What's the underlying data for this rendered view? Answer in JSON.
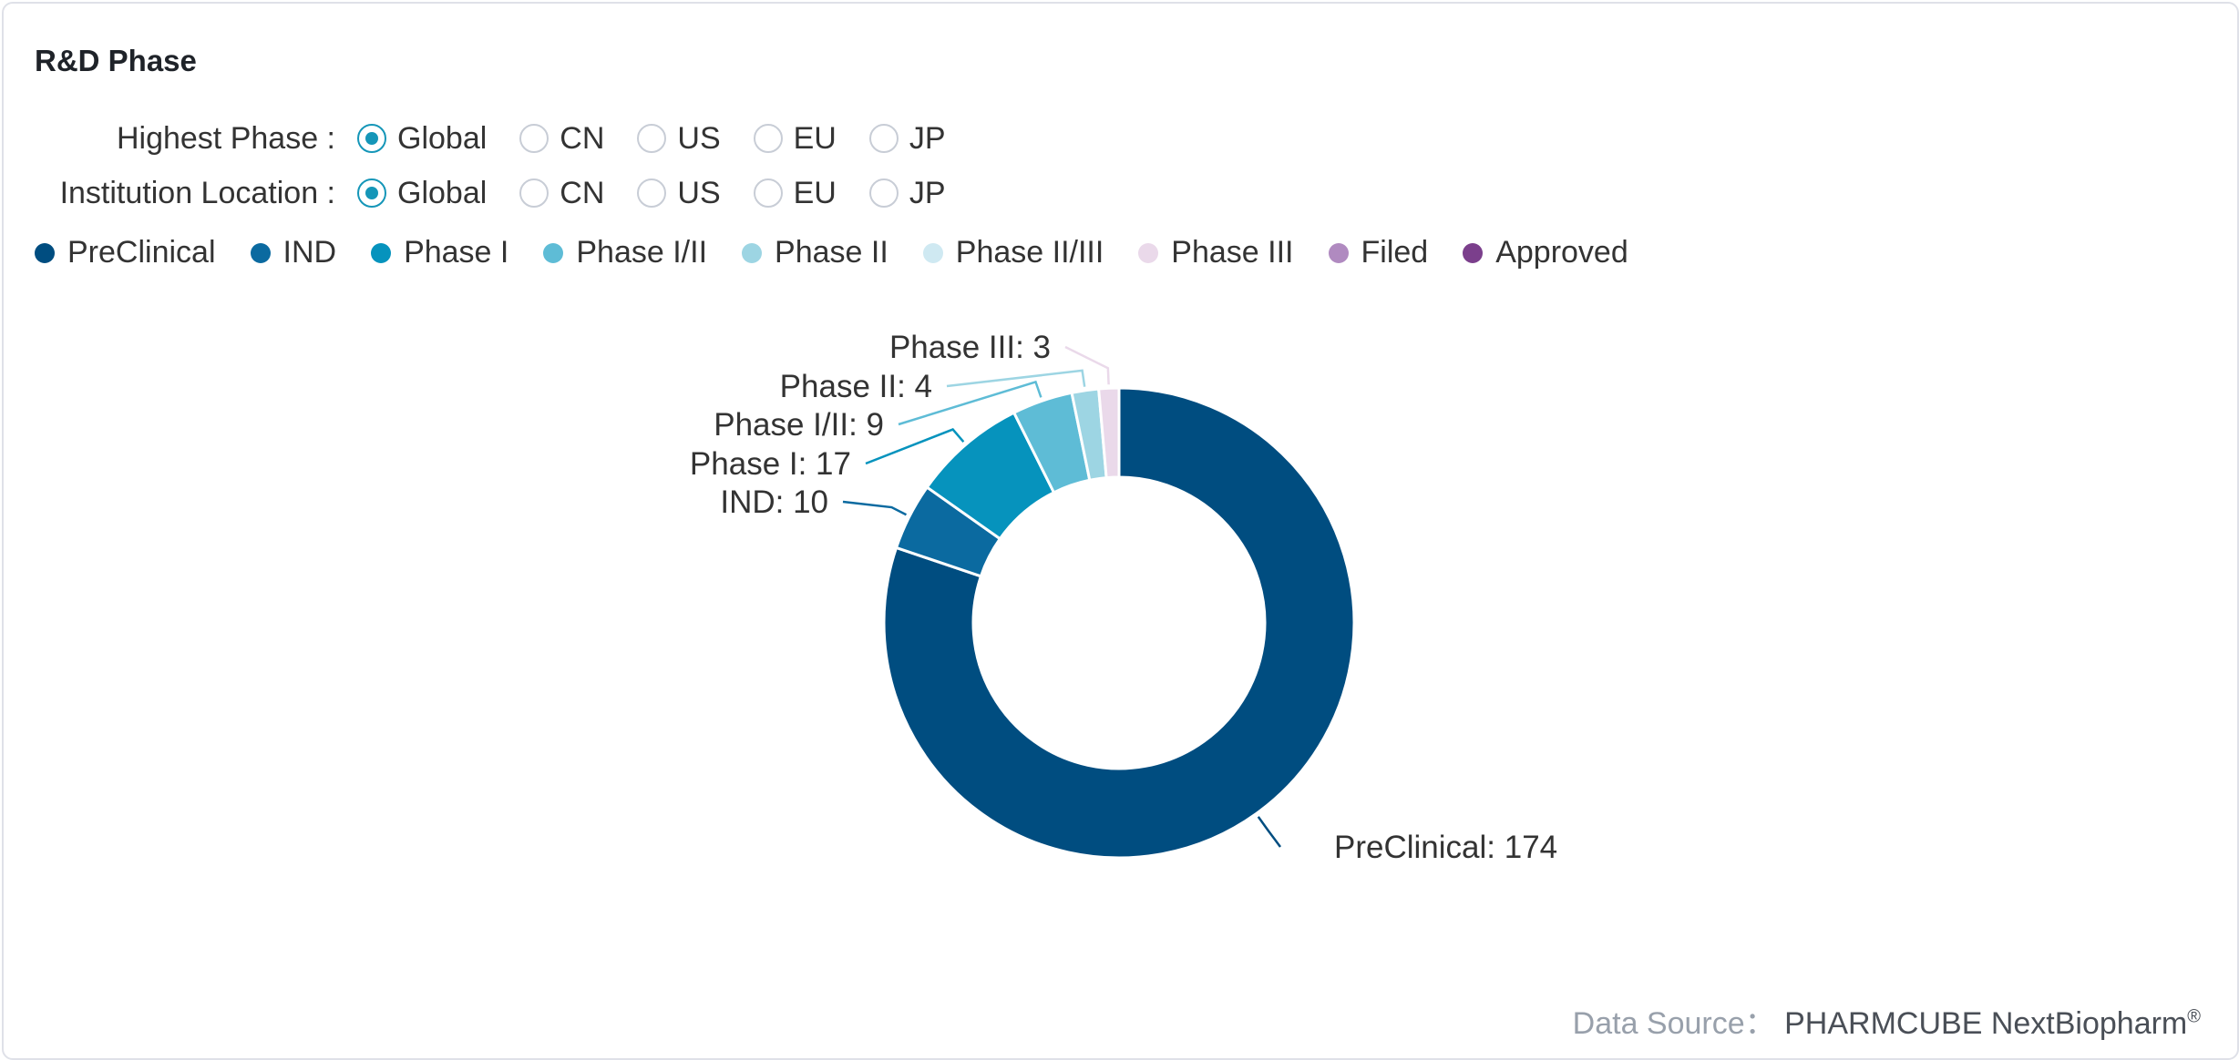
{
  "header": {
    "title": "R&D Phase"
  },
  "filters": [
    {
      "label": "Highest Phase :",
      "options": [
        "Global",
        "CN",
        "US",
        "EU",
        "JP"
      ],
      "selected": "Global"
    },
    {
      "label": "Institution Location :",
      "options": [
        "Global",
        "CN",
        "US",
        "EU",
        "JP"
      ],
      "selected": "Global"
    }
  ],
  "legend": [
    {
      "label": "PreClinical",
      "color": "#004d80"
    },
    {
      "label": "IND",
      "color": "#0b6aa0"
    },
    {
      "label": "Phase I",
      "color": "#0693bd"
    },
    {
      "label": "Phase I/II",
      "color": "#5ebcd6"
    },
    {
      "label": "Phase II",
      "color": "#9dd5e3"
    },
    {
      "label": "Phase II/III",
      "color": "#cfe9f2"
    },
    {
      "label": "Phase III",
      "color": "#ead9ea"
    },
    {
      "label": "Filed",
      "color": "#b08ac0"
    },
    {
      "label": "Approved",
      "color": "#7b3f8c"
    }
  ],
  "chart_data": {
    "type": "pie",
    "donut": true,
    "categories": [
      "PreClinical",
      "IND",
      "Phase I",
      "Phase I/II",
      "Phase II",
      "Phase III"
    ],
    "values": [
      174,
      10,
      17,
      9,
      4,
      3
    ],
    "labels": [
      "PreClinical: 174",
      "IND: 10",
      "Phase I: 17",
      "Phase I/II: 9",
      "Phase II: 4",
      "Phase III: 3"
    ],
    "colors": [
      "#004d80",
      "#0b6aa0",
      "#0693bd",
      "#5ebcd6",
      "#9dd5e3",
      "#ead9ea"
    ],
    "legend_position": "top"
  },
  "footer": {
    "source_label": "Data Source：",
    "source_brand": "PHARMCUBE NextBiopharm",
    "source_mark": "®"
  }
}
